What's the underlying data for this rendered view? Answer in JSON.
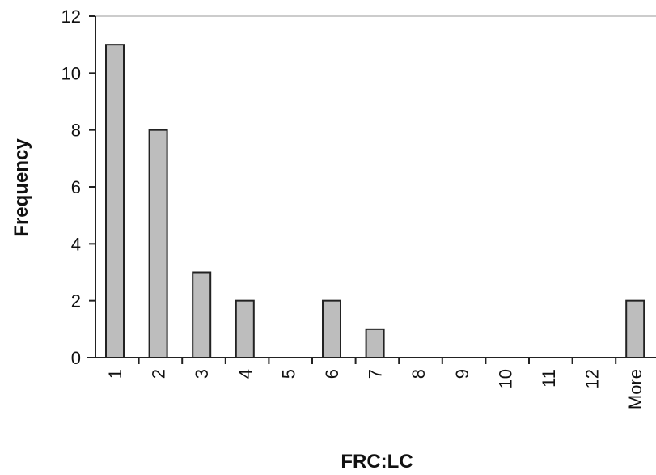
{
  "chart_data": {
    "type": "bar",
    "categories": [
      "1",
      "2",
      "3",
      "4",
      "5",
      "6",
      "7",
      "8",
      "9",
      "10",
      "11",
      "12",
      "More"
    ],
    "values": [
      11,
      8,
      3,
      2,
      0,
      2,
      1,
      0,
      0,
      0,
      0,
      0,
      2
    ],
    "title": "",
    "xlabel": "FRC:LC",
    "ylabel": "Frequency",
    "ylim": [
      0,
      12
    ],
    "yticks": [
      "0",
      "2",
      "4",
      "6",
      "8",
      "10",
      "12"
    ],
    "grid": false,
    "legend": "none",
    "colors": {
      "bar_fill": "#bdbdbd",
      "bar_stroke": "#222222",
      "axis": "#222222",
      "top_line": "#bbbbbb"
    }
  }
}
